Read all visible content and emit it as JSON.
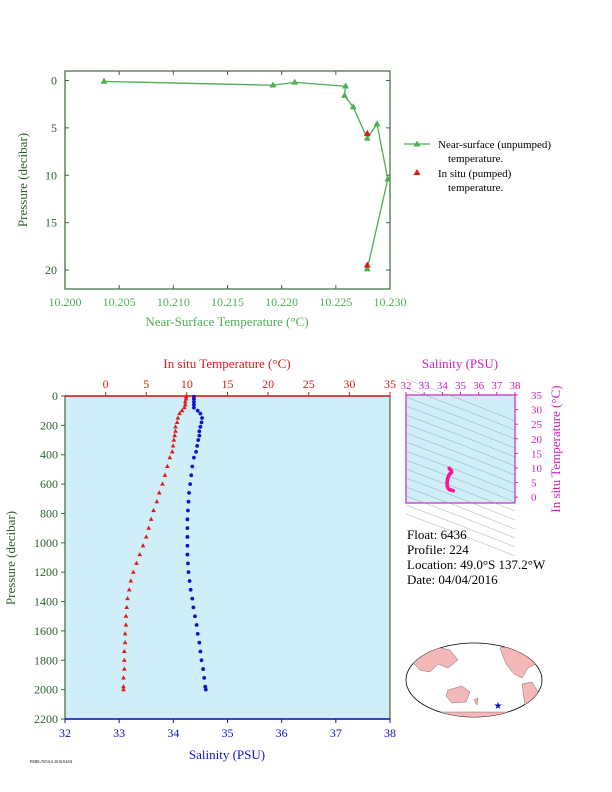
{
  "colors": {
    "green": "#4caf50",
    "dark_green": "#2e5e2e",
    "red": "#e01818",
    "blue": "#1010d0",
    "magenta": "#d020c0",
    "pink": "#ff1493",
    "plot_bg": "#d0eef8",
    "frame_green": "#3a6a3a"
  },
  "legend": {
    "near_surface_line1": "Near-surface (unpumped)",
    "near_surface_line2": "temperature.",
    "in_situ_line1": "In situ (pumped)",
    "in_situ_line2": "temperature."
  },
  "info": {
    "float": "Float:  6436",
    "profile": "Profile:  224",
    "location": "Location:  49.0°S  137.2°W",
    "date": "Date:  04/04/2016"
  },
  "footer": "PMEL/NOAA 2016/04/04",
  "chart_data": [
    {
      "type": "line",
      "title": "",
      "xlabel": "Near-Surface Temperature (°C)",
      "ylabel": "Pressure (decibar)",
      "xlim": [
        10.2,
        10.23
      ],
      "ylim": [
        22,
        -1
      ],
      "xticks": [
        "10.200",
        "10.205",
        "10.210",
        "10.215",
        "10.220",
        "10.225",
        "10.230"
      ],
      "yticks": [
        "0",
        "5",
        "10",
        "15",
        "20"
      ],
      "series": [
        {
          "name": "Near-surface (unpumped) temperature.",
          "marker": "triangle",
          "points": [
            [
              10.2036,
              0.1
            ],
            [
              10.2192,
              0.5
            ],
            [
              10.2212,
              0.2
            ],
            [
              10.2259,
              0.6
            ],
            [
              10.2258,
              1.6
            ],
            [
              10.2266,
              2.8
            ],
            [
              10.2279,
              6.1
            ],
            [
              10.2288,
              4.6
            ],
            [
              10.2298,
              10.4
            ],
            [
              10.2279,
              19.9
            ]
          ]
        },
        {
          "name": "In situ (pumped) temperature.",
          "marker": "triangle",
          "points": [
            [
              10.2279,
              5.6
            ],
            [
              10.2279,
              19.5
            ]
          ]
        }
      ]
    },
    {
      "type": "scatter",
      "title": "",
      "xlabel_top": "In situ Temperature (°C)",
      "xlabel_bottom": "Salinity (PSU)",
      "ylabel": "Pressure (decibar)",
      "temp_lim": [
        -5,
        35
      ],
      "sal_lim": [
        32,
        38
      ],
      "ylim": [
        2200,
        0
      ],
      "temp_ticks": [
        "0",
        "5",
        "10",
        "15",
        "20",
        "25",
        "30",
        "35"
      ],
      "sal_ticks": [
        "32",
        "33",
        "34",
        "35",
        "36",
        "37",
        "38"
      ],
      "pressure_ticks": [
        "0",
        "200",
        "400",
        "600",
        "800",
        "1000",
        "1200",
        "1400",
        "1600",
        "1800",
        "2000",
        "2200"
      ],
      "temperature_profile": [
        [
          9.9,
          5
        ],
        [
          9.9,
          20
        ],
        [
          9.8,
          40
        ],
        [
          9.8,
          60
        ],
        [
          9.7,
          80
        ],
        [
          9.4,
          100
        ],
        [
          9.1,
          120
        ],
        [
          8.9,
          150
        ],
        [
          8.8,
          180
        ],
        [
          8.6,
          210
        ],
        [
          8.6,
          240
        ],
        [
          8.5,
          270
        ],
        [
          8.4,
          300
        ],
        [
          8.3,
          340
        ],
        [
          8.2,
          380
        ],
        [
          7.9,
          420
        ],
        [
          7.6,
          480
        ],
        [
          7.3,
          540
        ],
        [
          7.0,
          600
        ],
        [
          6.6,
          660
        ],
        [
          6.3,
          720
        ],
        [
          5.9,
          780
        ],
        [
          5.6,
          840
        ],
        [
          5.3,
          900
        ],
        [
          5.0,
          960
        ],
        [
          4.6,
          1020
        ],
        [
          4.2,
          1080
        ],
        [
          3.8,
          1140
        ],
        [
          3.4,
          1200
        ],
        [
          3.1,
          1260
        ],
        [
          2.9,
          1320
        ],
        [
          2.7,
          1380
        ],
        [
          2.6,
          1440
        ],
        [
          2.5,
          1500
        ],
        [
          2.5,
          1560
        ],
        [
          2.4,
          1620
        ],
        [
          2.4,
          1680
        ],
        [
          2.3,
          1740
        ],
        [
          2.3,
          1800
        ],
        [
          2.3,
          1860
        ],
        [
          2.2,
          1920
        ],
        [
          2.2,
          1980
        ],
        [
          2.2,
          2000
        ]
      ],
      "salinity_profile": [
        [
          34.38,
          5
        ],
        [
          34.38,
          20
        ],
        [
          34.38,
          40
        ],
        [
          34.38,
          60
        ],
        [
          34.38,
          80
        ],
        [
          34.45,
          100
        ],
        [
          34.5,
          120
        ],
        [
          34.53,
          150
        ],
        [
          34.52,
          180
        ],
        [
          34.5,
          210
        ],
        [
          34.48,
          240
        ],
        [
          34.48,
          270
        ],
        [
          34.46,
          300
        ],
        [
          34.44,
          340
        ],
        [
          34.42,
          380
        ],
        [
          34.38,
          420
        ],
        [
          34.35,
          480
        ],
        [
          34.33,
          540
        ],
        [
          34.31,
          600
        ],
        [
          34.29,
          660
        ],
        [
          34.28,
          720
        ],
        [
          34.27,
          780
        ],
        [
          34.26,
          840
        ],
        [
          34.26,
          900
        ],
        [
          34.26,
          960
        ],
        [
          34.26,
          1020
        ],
        [
          34.26,
          1080
        ],
        [
          34.27,
          1140
        ],
        [
          34.28,
          1200
        ],
        [
          34.3,
          1260
        ],
        [
          34.32,
          1320
        ],
        [
          34.35,
          1380
        ],
        [
          34.37,
          1440
        ],
        [
          34.4,
          1500
        ],
        [
          34.43,
          1560
        ],
        [
          34.45,
          1620
        ],
        [
          34.48,
          1680
        ],
        [
          34.5,
          1740
        ],
        [
          34.52,
          1800
        ],
        [
          34.55,
          1860
        ],
        [
          34.57,
          1920
        ],
        [
          34.59,
          1980
        ],
        [
          34.6,
          2000
        ]
      ]
    },
    {
      "type": "scatter",
      "title": "",
      "xlabel": "Salinity (PSU)",
      "ylabel": "In situ Temperature (°C)",
      "xlim": [
        32,
        38
      ],
      "ylim": [
        -2,
        35
      ],
      "xticks": [
        "32",
        "33",
        "34",
        "35",
        "36",
        "37",
        "38"
      ],
      "yticks": [
        "0",
        "5",
        "10",
        "15",
        "20",
        "25",
        "30",
        "35"
      ],
      "ts_points": [
        [
          34.38,
          9.9
        ],
        [
          34.5,
          9.0
        ],
        [
          34.5,
          8.5
        ],
        [
          34.42,
          8.0
        ],
        [
          34.35,
          7.3
        ],
        [
          34.29,
          6.3
        ],
        [
          34.26,
          5.0
        ],
        [
          34.27,
          3.8
        ],
        [
          34.32,
          3.0
        ],
        [
          34.4,
          2.6
        ],
        [
          34.5,
          2.4
        ],
        [
          34.6,
          2.2
        ]
      ]
    }
  ]
}
